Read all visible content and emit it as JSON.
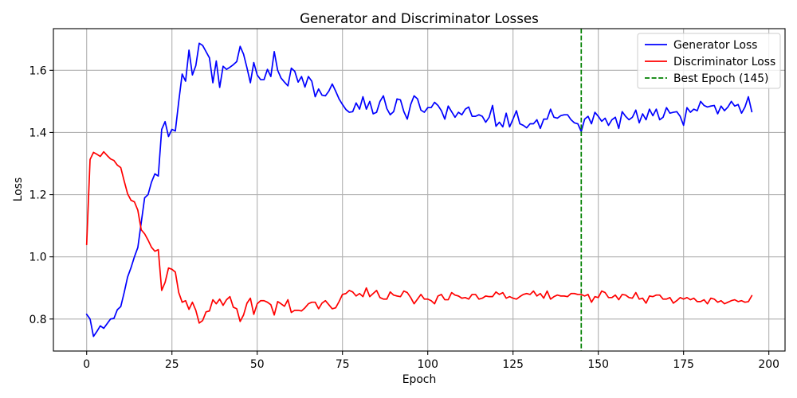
{
  "chart_data": {
    "type": "line",
    "title": "Generator and Discriminator Losses",
    "xlabel": "Epoch",
    "ylabel": "Loss",
    "xlim": [
      -9.75,
      204.75
    ],
    "ylim": [
      0.697,
      1.734
    ],
    "x_ticks": [
      "0",
      "25",
      "50",
      "75",
      "100",
      "125",
      "150",
      "175",
      "200"
    ],
    "y_ticks": [
      "0.8",
      "1.0",
      "1.2",
      "1.4",
      "1.6"
    ],
    "grid": true,
    "legend_position": "top-right",
    "x": [
      0,
      1,
      2,
      3,
      4,
      5,
      6,
      7,
      8,
      9,
      10,
      11,
      12,
      13,
      14,
      15,
      16,
      17,
      18,
      19,
      20,
      21,
      22,
      23,
      24,
      25,
      26,
      27,
      28,
      29,
      30,
      31,
      32,
      33,
      34,
      35,
      36,
      37,
      38,
      39,
      40,
      41,
      42,
      43,
      44,
      45,
      46,
      47,
      48,
      49,
      50,
      51,
      52,
      53,
      54,
      55,
      56,
      57,
      58,
      59,
      60,
      61,
      62,
      63,
      64,
      65,
      66,
      67,
      68,
      69,
      70,
      71,
      72,
      73,
      74,
      75,
      76,
      77,
      78,
      79,
      80,
      81,
      82,
      83,
      84,
      85,
      86,
      87,
      88,
      89,
      90,
      91,
      92,
      93,
      94,
      95,
      96,
      97,
      98,
      99,
      100,
      101,
      102,
      103,
      104,
      105,
      106,
      107,
      108,
      109,
      110,
      111,
      112,
      113,
      114,
      115,
      116,
      117,
      118,
      119,
      120,
      121,
      122,
      123,
      124,
      125,
      126,
      127,
      128,
      129,
      130,
      131,
      132,
      133,
      134,
      135,
      136,
      137,
      138,
      139,
      140,
      141,
      142,
      143,
      144,
      145,
      146,
      147,
      148,
      149,
      150,
      151,
      152,
      153,
      154,
      155,
      156,
      157,
      158,
      159,
      160,
      161,
      162,
      163,
      164,
      165,
      166,
      167,
      168,
      169,
      170,
      171,
      172,
      173,
      174,
      175,
      176,
      177,
      178,
      179,
      180,
      181,
      182,
      183,
      184,
      185,
      186,
      187,
      188,
      189,
      190,
      191,
      192,
      193,
      194,
      195
    ],
    "series": [
      {
        "name": "Generator Loss",
        "color": "#0000ff",
        "values": [
          0.815,
          0.8,
          0.744,
          0.76,
          0.778,
          0.77,
          0.785,
          0.8,
          0.802,
          0.83,
          0.84,
          0.885,
          0.935,
          0.965,
          1.0,
          1.03,
          1.11,
          1.19,
          1.2,
          1.24,
          1.267,
          1.26,
          1.41,
          1.435,
          1.387,
          1.41,
          1.405,
          1.5,
          1.588,
          1.565,
          1.665,
          1.585,
          1.615,
          1.687,
          1.68,
          1.66,
          1.64,
          1.56,
          1.63,
          1.545,
          1.613,
          1.603,
          1.61,
          1.618,
          1.628,
          1.677,
          1.652,
          1.608,
          1.56,
          1.625,
          1.585,
          1.57,
          1.57,
          1.603,
          1.58,
          1.66,
          1.6,
          1.575,
          1.562,
          1.55,
          1.607,
          1.597,
          1.562,
          1.58,
          1.546,
          1.58,
          1.565,
          1.515,
          1.54,
          1.52,
          1.518,
          1.533,
          1.556,
          1.533,
          1.508,
          1.49,
          1.474,
          1.465,
          1.467,
          1.495,
          1.475,
          1.515,
          1.475,
          1.5,
          1.46,
          1.465,
          1.5,
          1.518,
          1.477,
          1.457,
          1.467,
          1.508,
          1.505,
          1.467,
          1.443,
          1.49,
          1.518,
          1.508,
          1.472,
          1.465,
          1.48,
          1.48,
          1.497,
          1.487,
          1.47,
          1.443,
          1.485,
          1.467,
          1.449,
          1.465,
          1.457,
          1.475,
          1.482,
          1.452,
          1.452,
          1.457,
          1.452,
          1.433,
          1.449,
          1.487,
          1.42,
          1.433,
          1.418,
          1.462,
          1.418,
          1.443,
          1.47,
          1.428,
          1.423,
          1.415,
          1.428,
          1.428,
          1.441,
          1.413,
          1.443,
          1.443,
          1.475,
          1.449,
          1.446,
          1.454,
          1.457,
          1.457,
          1.441,
          1.431,
          1.428,
          1.403,
          1.443,
          1.452,
          1.428,
          1.465,
          1.452,
          1.436,
          1.446,
          1.423,
          1.441,
          1.449,
          1.413,
          1.467,
          1.452,
          1.441,
          1.449,
          1.472,
          1.431,
          1.46,
          1.441,
          1.475,
          1.454,
          1.475,
          1.441,
          1.449,
          1.48,
          1.462,
          1.465,
          1.467,
          1.452,
          1.423,
          1.48,
          1.465,
          1.475,
          1.47,
          1.5,
          1.487,
          1.482,
          1.485,
          1.487,
          1.46,
          1.485,
          1.47,
          1.482,
          1.5,
          1.485,
          1.49,
          1.462,
          1.482,
          1.515,
          1.467
        ]
      },
      {
        "name": "Discriminator Loss",
        "color": "#ff0000",
        "values": [
          1.04,
          1.313,
          1.336,
          1.33,
          1.323,
          1.338,
          1.326,
          1.315,
          1.31,
          1.295,
          1.287,
          1.244,
          1.203,
          1.182,
          1.177,
          1.15,
          1.087,
          1.074,
          1.054,
          1.031,
          1.018,
          1.023,
          0.892,
          0.918,
          0.964,
          0.96,
          0.951,
          0.885,
          0.854,
          0.859,
          0.831,
          0.854,
          0.828,
          0.787,
          0.795,
          0.823,
          0.826,
          0.862,
          0.849,
          0.864,
          0.844,
          0.862,
          0.872,
          0.838,
          0.833,
          0.792,
          0.813,
          0.851,
          0.867,
          0.815,
          0.849,
          0.859,
          0.859,
          0.854,
          0.846,
          0.813,
          0.856,
          0.849,
          0.841,
          0.862,
          0.821,
          0.828,
          0.828,
          0.826,
          0.836,
          0.849,
          0.854,
          0.854,
          0.833,
          0.851,
          0.859,
          0.846,
          0.833,
          0.836,
          0.856,
          0.879,
          0.882,
          0.892,
          0.887,
          0.874,
          0.882,
          0.872,
          0.9,
          0.872,
          0.882,
          0.892,
          0.869,
          0.864,
          0.864,
          0.887,
          0.877,
          0.874,
          0.872,
          0.89,
          0.885,
          0.869,
          0.849,
          0.864,
          0.879,
          0.864,
          0.864,
          0.859,
          0.849,
          0.874,
          0.879,
          0.862,
          0.862,
          0.885,
          0.877,
          0.874,
          0.867,
          0.869,
          0.864,
          0.879,
          0.879,
          0.864,
          0.867,
          0.874,
          0.872,
          0.872,
          0.887,
          0.879,
          0.885,
          0.867,
          0.872,
          0.867,
          0.864,
          0.872,
          0.879,
          0.882,
          0.879,
          0.89,
          0.874,
          0.882,
          0.867,
          0.89,
          0.864,
          0.872,
          0.877,
          0.874,
          0.874,
          0.872,
          0.882,
          0.882,
          0.879,
          0.879,
          0.874,
          0.879,
          0.854,
          0.872,
          0.869,
          0.89,
          0.885,
          0.869,
          0.869,
          0.877,
          0.862,
          0.879,
          0.877,
          0.869,
          0.867,
          0.885,
          0.864,
          0.867,
          0.851,
          0.874,
          0.872,
          0.877,
          0.877,
          0.864,
          0.864,
          0.869,
          0.851,
          0.859,
          0.869,
          0.864,
          0.869,
          0.862,
          0.867,
          0.856,
          0.856,
          0.862,
          0.849,
          0.867,
          0.864,
          0.854,
          0.859,
          0.849,
          0.854,
          0.859,
          0.862,
          0.856,
          0.859,
          0.854,
          0.856,
          0.875
        ]
      }
    ],
    "vline": {
      "x": 145,
      "label": "Best Epoch (145)",
      "color": "#008000"
    }
  }
}
